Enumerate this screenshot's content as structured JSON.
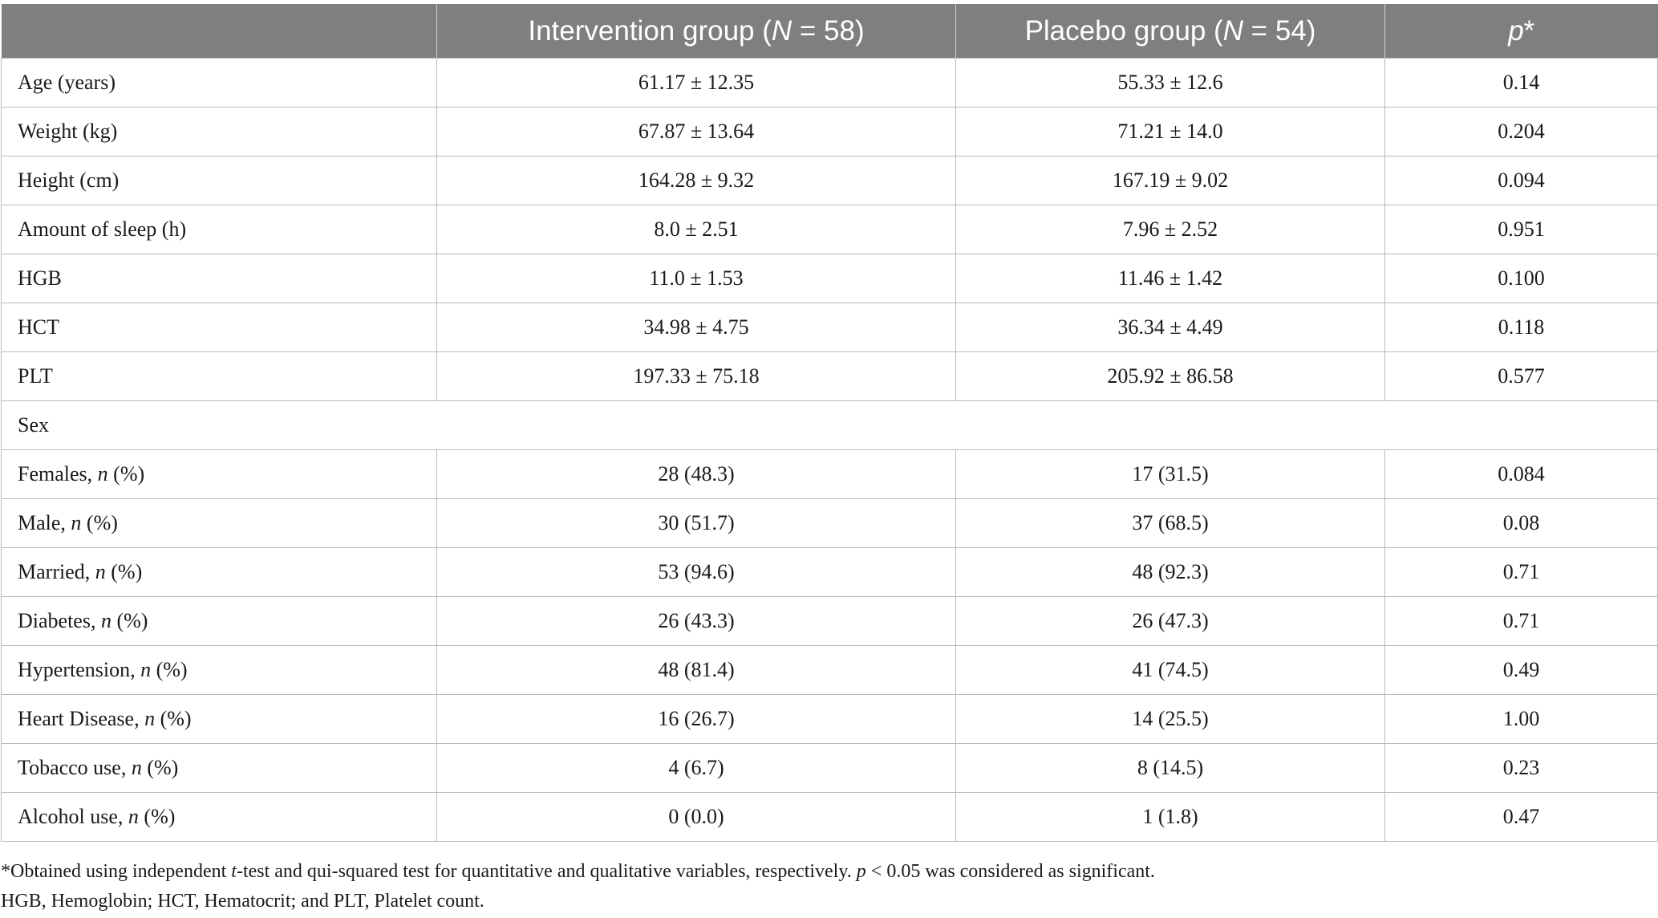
{
  "table": {
    "headers": {
      "col0": "",
      "col1_prefix": "Intervention group (",
      "col1_n": "N",
      "col1_suffix": " = 58)",
      "col2_prefix": "Placebo group (",
      "col2_n": "N",
      "col2_suffix": " = 54)",
      "col3_p": "p",
      "col3_star": "*"
    },
    "rows": [
      {
        "label": "Age (years)",
        "label_italic": "",
        "label_suffix": "",
        "intervention": "61.17 ± 12.35",
        "placebo": "55.33 ± 12.6",
        "p": "0.14"
      },
      {
        "label": "Weight (kg)",
        "label_italic": "",
        "label_suffix": "",
        "intervention": "67.87 ± 13.64",
        "placebo": "71.21 ± 14.0",
        "p": "0.204"
      },
      {
        "label": "Height (cm)",
        "label_italic": "",
        "label_suffix": "",
        "intervention": "164.28 ± 9.32",
        "placebo": "167.19 ± 9.02",
        "p": "0.094"
      },
      {
        "label": "Amount of sleep (h)",
        "label_italic": "",
        "label_suffix": "",
        "intervention": "8.0 ± 2.51",
        "placebo": "7.96 ± 2.52",
        "p": "0.951"
      },
      {
        "label": "HGB",
        "label_italic": "",
        "label_suffix": "",
        "intervention": "11.0 ± 1.53",
        "placebo": "11.46 ± 1.42",
        "p": "0.100"
      },
      {
        "label": "HCT",
        "label_italic": "",
        "label_suffix": "",
        "intervention": "34.98 ± 4.75",
        "placebo": "36.34 ± 4.49",
        "p": "0.118"
      },
      {
        "label": "PLT",
        "label_italic": "",
        "label_suffix": "",
        "intervention": "197.33 ± 75.18",
        "placebo": "205.92 ± 86.58",
        "p": "0.577"
      }
    ],
    "section_label": "Sex",
    "rows2": [
      {
        "label": "Females, ",
        "label_italic": "n",
        "label_suffix": " (%)",
        "intervention": "28 (48.3)",
        "placebo": "17 (31.5)",
        "p": "0.084"
      },
      {
        "label": "Male, ",
        "label_italic": "n",
        "label_suffix": " (%)",
        "intervention": "30 (51.7)",
        "placebo": "37 (68.5)",
        "p": "0.08"
      },
      {
        "label": "Married, ",
        "label_italic": "n",
        "label_suffix": " (%)",
        "intervention": "53 (94.6)",
        "placebo": "48 (92.3)",
        "p": "0.71"
      },
      {
        "label": "Diabetes, ",
        "label_italic": "n",
        "label_suffix": " (%)",
        "intervention": "26 (43.3)",
        "placebo": "26 (47.3)",
        "p": "0.71"
      },
      {
        "label": "Hypertension, ",
        "label_italic": "n",
        "label_suffix": " (%)",
        "intervention": "48 (81.4)",
        "placebo": "41 (74.5)",
        "p": "0.49"
      },
      {
        "label": "Heart Disease, ",
        "label_italic": "n",
        "label_suffix": " (%)",
        "intervention": "16 (26.7)",
        "placebo": "14 (25.5)",
        "p": "1.00"
      },
      {
        "label": "Tobacco use, ",
        "label_italic": "n",
        "label_suffix": " (%)",
        "intervention": "4 (6.7)",
        "placebo": "8 (14.5)",
        "p": "0.23"
      },
      {
        "label": "Alcohol use, ",
        "label_italic": "n",
        "label_suffix": " (%)",
        "intervention": "0 (0.0)",
        "placebo": "1 (1.8)",
        "p": "0.47"
      }
    ]
  },
  "footnotes": {
    "line1_a": "*Obtained using independent ",
    "line1_t": "t",
    "line1_b": "-test and qui-squared test for quantitative and qualitative variables, respectively. ",
    "line1_p": "p",
    "line1_c": " < 0.05 was considered as significant.",
    "line2": "HGB, Hemoglobin; HCT, Hematocrit; and PLT, Platelet count."
  },
  "colors": {
    "header_bg": "#7f7f7f",
    "header_text": "#ffffff",
    "border": "#b9b9b9"
  }
}
